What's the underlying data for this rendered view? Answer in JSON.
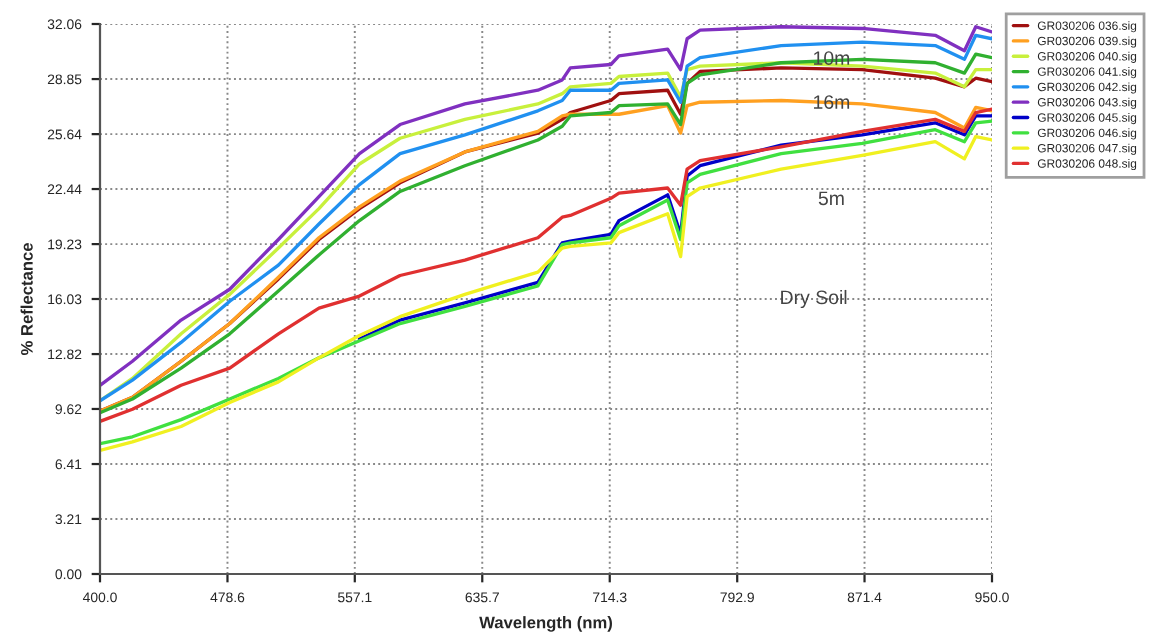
{
  "chart_data": {
    "type": "line",
    "xlabel": "Wavelength (nm)",
    "ylabel": "% Reflectance",
    "x": [
      400,
      420,
      450,
      480,
      510,
      535,
      560,
      585,
      625,
      670,
      685,
      690,
      715,
      720,
      750,
      758,
      762,
      770,
      820,
      870,
      915,
      933,
      940,
      950
    ],
    "series": [
      {
        "name": "GR030206 036.sig",
        "color": "#a01010",
        "values": [
          9.5,
          10.3,
          12.4,
          14.6,
          17.2,
          19.5,
          21.3,
          22.8,
          24.6,
          25.7,
          26.5,
          26.9,
          27.6,
          28.0,
          28.2,
          26.8,
          28.6,
          29.3,
          29.5,
          29.4,
          28.9,
          28.4,
          28.9,
          28.7
        ]
      },
      {
        "name": "GR030206 039.sig",
        "color": "#ffa020",
        "values": [
          9.5,
          10.3,
          12.4,
          14.6,
          17.3,
          19.6,
          21.4,
          22.9,
          24.6,
          25.8,
          26.7,
          26.8,
          26.8,
          26.8,
          27.3,
          25.7,
          27.3,
          27.5,
          27.6,
          27.4,
          26.9,
          26.0,
          27.2,
          27.0
        ]
      },
      {
        "name": "GR030206 040.sig",
        "color": "#c8f03c",
        "values": [
          10.1,
          11.4,
          14.0,
          16.3,
          19.0,
          21.3,
          23.9,
          25.4,
          26.5,
          27.4,
          28.0,
          28.4,
          28.6,
          29.0,
          29.2,
          27.8,
          29.4,
          29.6,
          29.8,
          29.6,
          29.2,
          28.4,
          29.4,
          29.4
        ]
      },
      {
        "name": "GR030206 041.sig",
        "color": "#30b030",
        "values": [
          9.4,
          10.2,
          12.0,
          14.0,
          16.5,
          18.6,
          20.6,
          22.3,
          23.8,
          25.3,
          26.1,
          26.7,
          26.9,
          27.3,
          27.4,
          26.2,
          28.6,
          29.1,
          29.8,
          30.0,
          29.8,
          29.2,
          30.3,
          30.1
        ]
      },
      {
        "name": "GR030206 042.sig",
        "color": "#2090f0",
        "values": [
          10.1,
          11.3,
          13.5,
          15.9,
          18.0,
          20.4,
          22.7,
          24.5,
          25.6,
          27.0,
          27.6,
          28.2,
          28.2,
          28.6,
          28.8,
          27.5,
          29.6,
          30.1,
          30.8,
          31.0,
          30.8,
          30.0,
          31.4,
          31.2
        ]
      },
      {
        "name": "GR030206 043.sig",
        "color": "#8030c0",
        "values": [
          11.0,
          12.4,
          14.8,
          16.6,
          19.5,
          22.0,
          24.5,
          26.2,
          27.4,
          28.2,
          28.8,
          29.5,
          29.7,
          30.2,
          30.6,
          29.4,
          31.2,
          31.7,
          31.9,
          31.8,
          31.4,
          30.5,
          31.9,
          31.6
        ]
      },
      {
        "name": "GR030206 045.sig",
        "color": "#0000c8",
        "values": [
          null,
          null,
          null,
          null,
          null,
          null,
          13.7,
          14.8,
          15.8,
          17.0,
          19.3,
          19.4,
          19.8,
          20.6,
          22.1,
          19.8,
          23.2,
          23.8,
          25.0,
          25.6,
          26.3,
          25.6,
          26.7,
          26.7
        ]
      },
      {
        "name": "GR030206 046.sig",
        "color": "#40e040",
        "values": [
          7.6,
          8.0,
          9.0,
          10.2,
          11.4,
          12.6,
          13.6,
          14.6,
          15.6,
          16.8,
          19.2,
          19.3,
          19.6,
          20.3,
          21.8,
          19.5,
          22.8,
          23.3,
          24.5,
          25.1,
          25.9,
          25.2,
          26.3,
          26.4
        ]
      },
      {
        "name": "GR030206 047.sig",
        "color": "#f0f020",
        "values": [
          7.2,
          7.7,
          8.6,
          10.0,
          11.2,
          12.6,
          13.9,
          15.0,
          16.3,
          17.6,
          19.0,
          19.1,
          19.3,
          19.9,
          21.0,
          18.5,
          22.0,
          22.5,
          23.6,
          24.4,
          25.2,
          24.2,
          25.5,
          25.3
        ]
      },
      {
        "name": "GR030206 048.sig",
        "color": "#e03030",
        "values": [
          8.9,
          9.6,
          11.0,
          12.0,
          14.0,
          15.5,
          16.2,
          17.4,
          18.3,
          19.6,
          20.8,
          20.9,
          21.9,
          22.2,
          22.5,
          21.5,
          23.6,
          24.1,
          24.9,
          25.8,
          26.5,
          25.8,
          26.9,
          27.1
        ]
      }
    ],
    "annotations": [
      "10m",
      "16m",
      "5m",
      "Dry Soil"
    ],
    "xlim": [
      400,
      950
    ],
    "xticks": [
      {
        "value": 400,
        "label": "400.0"
      },
      478.6,
      557.1,
      635.7,
      714.3,
      792.9,
      871.4,
      {
        "value": 950,
        "label": "950.0"
      }
    ],
    "ylim": [
      0,
      32.06
    ],
    "yticks": [
      {
        "value": 0,
        "label": "0.00"
      },
      3.21,
      6.41,
      9.62,
      12.82,
      16.03,
      19.23,
      22.44,
      25.64,
      28.85,
      32.06
    ],
    "grid": true,
    "legend": "top right",
    "marker": "none",
    "line_style": "solid"
  }
}
